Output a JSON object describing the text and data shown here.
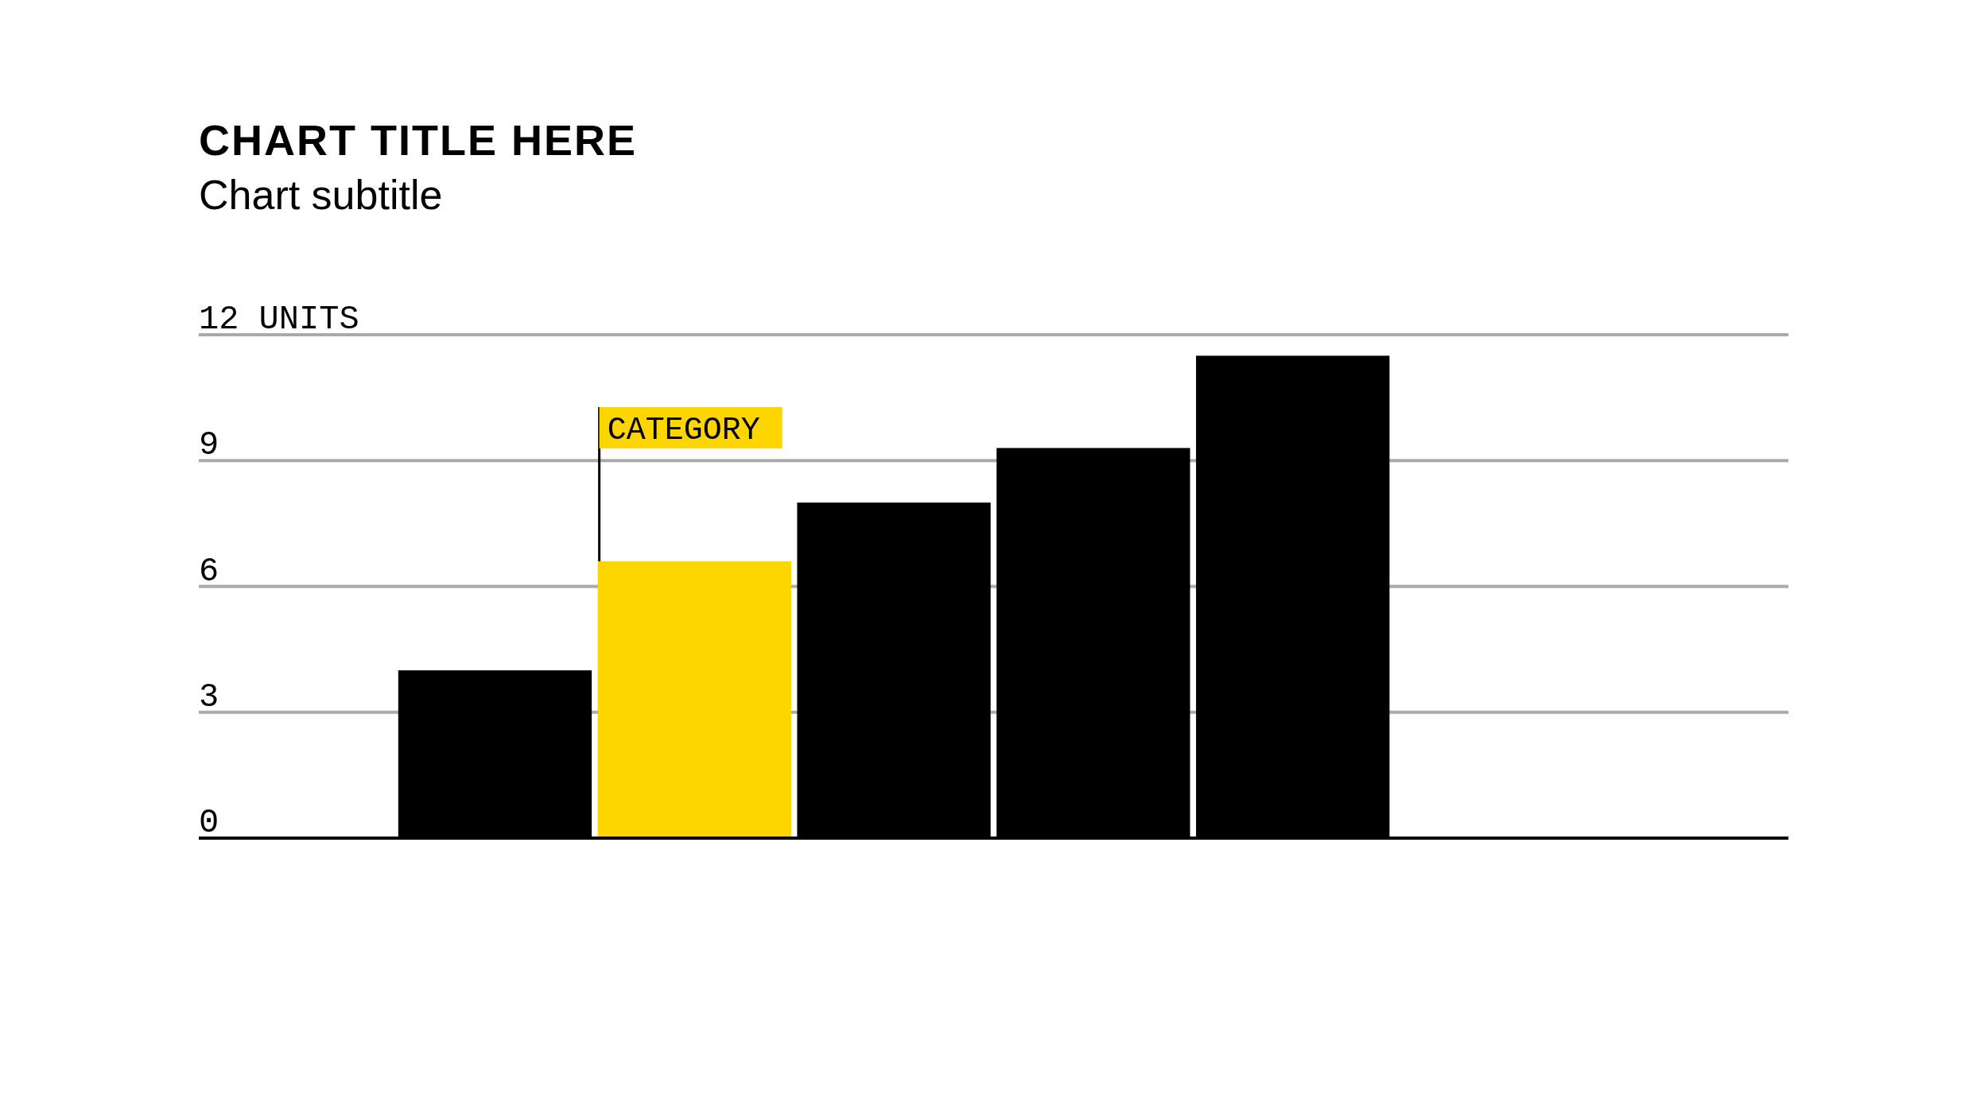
{
  "chart_data": {
    "type": "bar",
    "title": "CHART TITLE HERE",
    "subtitle": "Chart subtitle",
    "categories": [
      null,
      null,
      null,
      null,
      null,
      null,
      null,
      null
    ],
    "values": [
      null,
      4,
      6.6,
      8,
      9.3,
      11.5,
      null,
      null
    ],
    "colors": [
      "#000000",
      "#000000",
      "#fdd600",
      "#000000",
      "#000000",
      "#000000",
      "#000000",
      "#000000"
    ],
    "ylim": [
      0,
      12
    ],
    "yticks": [
      0,
      3,
      6,
      9,
      {
        "value": 12,
        "label": "12 UNITS"
      }
    ],
    "grid": "y",
    "annotations": [
      "CATEGORY"
    ]
  }
}
